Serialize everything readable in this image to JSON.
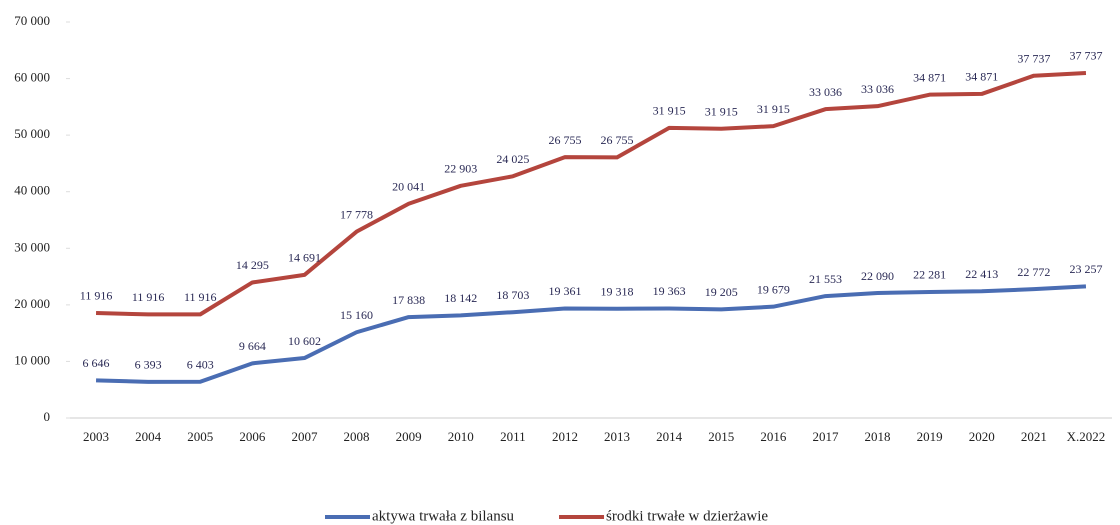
{
  "chart_data": {
    "type": "line",
    "stacked": true,
    "categories": [
      "2003",
      "2004",
      "2005",
      "2006",
      "2007",
      "2008",
      "2009",
      "2010",
      "2011",
      "2012",
      "2013",
      "2014",
      "2015",
      "2016",
      "2017",
      "2018",
      "2019",
      "2020",
      "2021",
      "X.2022"
    ],
    "series": [
      {
        "name": "aktywa trwała z bilansu",
        "color": "#4a6db3",
        "values": [
          6646,
          6393,
          6403,
          9664,
          10602,
          15160,
          17838,
          18142,
          18703,
          19361,
          19318,
          19363,
          19205,
          19679,
          21553,
          22090,
          22281,
          22413,
          22772,
          23257
        ],
        "value_labels": [
          "6 646",
          "6 393",
          "6 403",
          "9 664",
          "10 602",
          "15 160",
          "17 838",
          "18 142",
          "18 703",
          "19 361",
          "19 318",
          "19 363",
          "19 205",
          "19 679",
          "21 553",
          "22 090",
          "22 281",
          "22 413",
          "22 772",
          "23 257"
        ]
      },
      {
        "name": "środki trwałe w dzierżawie",
        "color": "#b4453d",
        "values": [
          11916,
          11916,
          11916,
          14295,
          14691,
          17778,
          20041,
          22903,
          24025,
          26755,
          26755,
          31915,
          31915,
          31915,
          33036,
          33036,
          34871,
          34871,
          37737,
          37737
        ],
        "value_labels": [
          "11 916",
          "11 916",
          "11 916",
          "14 295",
          "14 691",
          "17 778",
          "20 041",
          "22 903",
          "24 025",
          "26 755",
          "26 755",
          "31 915",
          "31 915",
          "31 915",
          "33 036",
          "33 036",
          "34 871",
          "34 871",
          "37 737",
          "37 737"
        ]
      }
    ],
    "ylim": [
      0,
      70000
    ],
    "yticks": [
      0,
      {
        "value": 10000,
        "label": "10 000"
      },
      {
        "value": 20000,
        "label": "20 000"
      },
      {
        "value": 30000,
        "label": "30 000"
      },
      {
        "value": 40000,
        "label": "40 000"
      },
      {
        "value": 50000,
        "label": "50 000"
      },
      {
        "value": 60000,
        "label": "60 000"
      },
      {
        "value": 70000,
        "label": "70 000"
      }
    ],
    "legend": "bottom"
  }
}
